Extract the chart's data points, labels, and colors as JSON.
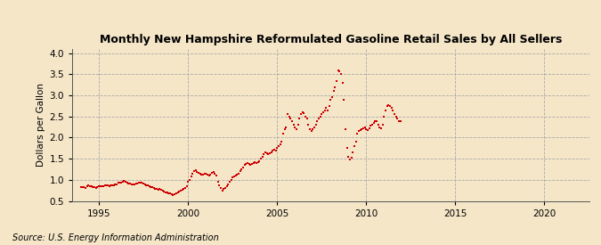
{
  "title": "Monthly New Hampshire Reformulated Gasoline Retail Sales by All Sellers",
  "ylabel": "Dollars per Gallon",
  "source": "Source: U.S. Energy Information Administration",
  "xlim": [
    1993.5,
    2022.5
  ],
  "ylim": [
    0.5,
    4.1
  ],
  "yticks": [
    0.5,
    1.0,
    1.5,
    2.0,
    2.5,
    3.0,
    3.5,
    4.0
  ],
  "xticks": [
    1995,
    2000,
    2005,
    2010,
    2015,
    2020
  ],
  "bg_color": "#F5E6C8",
  "marker_color": "#CC0000",
  "data": [
    [
      1994.0,
      0.82
    ],
    [
      1994.08,
      0.83
    ],
    [
      1994.17,
      0.82
    ],
    [
      1994.25,
      0.81
    ],
    [
      1994.33,
      0.84
    ],
    [
      1994.42,
      0.88
    ],
    [
      1994.5,
      0.85
    ],
    [
      1994.58,
      0.84
    ],
    [
      1994.67,
      0.83
    ],
    [
      1994.75,
      0.82
    ],
    [
      1994.83,
      0.81
    ],
    [
      1994.92,
      0.82
    ],
    [
      1995.0,
      0.84
    ],
    [
      1995.08,
      0.85
    ],
    [
      1995.17,
      0.84
    ],
    [
      1995.25,
      0.85
    ],
    [
      1995.33,
      0.86
    ],
    [
      1995.42,
      0.88
    ],
    [
      1995.5,
      0.87
    ],
    [
      1995.58,
      0.85
    ],
    [
      1995.67,
      0.86
    ],
    [
      1995.75,
      0.87
    ],
    [
      1995.83,
      0.88
    ],
    [
      1995.92,
      0.89
    ],
    [
      1996.0,
      0.9
    ],
    [
      1996.08,
      0.93
    ],
    [
      1996.17,
      0.94
    ],
    [
      1996.25,
      0.94
    ],
    [
      1996.33,
      0.96
    ],
    [
      1996.42,
      0.97
    ],
    [
      1996.5,
      0.95
    ],
    [
      1996.58,
      0.93
    ],
    [
      1996.67,
      0.92
    ],
    [
      1996.75,
      0.91
    ],
    [
      1996.83,
      0.9
    ],
    [
      1996.92,
      0.89
    ],
    [
      1997.0,
      0.9
    ],
    [
      1997.08,
      0.91
    ],
    [
      1997.17,
      0.92
    ],
    [
      1997.25,
      0.93
    ],
    [
      1997.33,
      0.94
    ],
    [
      1997.42,
      0.94
    ],
    [
      1997.5,
      0.92
    ],
    [
      1997.58,
      0.9
    ],
    [
      1997.67,
      0.88
    ],
    [
      1997.75,
      0.87
    ],
    [
      1997.83,
      0.85
    ],
    [
      1997.92,
      0.83
    ],
    [
      1998.0,
      0.82
    ],
    [
      1998.08,
      0.8
    ],
    [
      1998.17,
      0.79
    ],
    [
      1998.25,
      0.78
    ],
    [
      1998.33,
      0.77
    ],
    [
      1998.42,
      0.78
    ],
    [
      1998.5,
      0.76
    ],
    [
      1998.58,
      0.74
    ],
    [
      1998.67,
      0.73
    ],
    [
      1998.75,
      0.71
    ],
    [
      1998.83,
      0.7
    ],
    [
      1998.92,
      0.68
    ],
    [
      1999.0,
      0.67
    ],
    [
      1999.08,
      0.65
    ],
    [
      1999.17,
      0.64
    ],
    [
      1999.25,
      0.66
    ],
    [
      1999.33,
      0.68
    ],
    [
      1999.42,
      0.71
    ],
    [
      1999.5,
      0.73
    ],
    [
      1999.58,
      0.75
    ],
    [
      1999.67,
      0.77
    ],
    [
      1999.75,
      0.78
    ],
    [
      1999.83,
      0.8
    ],
    [
      1999.92,
      0.85
    ],
    [
      2000.0,
      0.95
    ],
    [
      2000.08,
      1.0
    ],
    [
      2000.17,
      1.08
    ],
    [
      2000.25,
      1.15
    ],
    [
      2000.33,
      1.2
    ],
    [
      2000.42,
      1.22
    ],
    [
      2000.5,
      1.18
    ],
    [
      2000.58,
      1.16
    ],
    [
      2000.67,
      1.14
    ],
    [
      2000.75,
      1.13
    ],
    [
      2000.83,
      1.12
    ],
    [
      2000.92,
      1.15
    ],
    [
      2001.0,
      1.15
    ],
    [
      2001.08,
      1.12
    ],
    [
      2001.17,
      1.1
    ],
    [
      2001.25,
      1.13
    ],
    [
      2001.33,
      1.16
    ],
    [
      2001.42,
      1.18
    ],
    [
      2001.5,
      1.15
    ],
    [
      2001.58,
      1.1
    ],
    [
      2001.67,
      0.95
    ],
    [
      2001.75,
      0.88
    ],
    [
      2001.83,
      0.8
    ],
    [
      2001.92,
      0.75
    ],
    [
      2002.0,
      0.78
    ],
    [
      2002.08,
      0.8
    ],
    [
      2002.17,
      0.85
    ],
    [
      2002.25,
      0.9
    ],
    [
      2002.33,
      0.95
    ],
    [
      2002.42,
      1.0
    ],
    [
      2002.5,
      1.05
    ],
    [
      2002.58,
      1.08
    ],
    [
      2002.67,
      1.1
    ],
    [
      2002.75,
      1.12
    ],
    [
      2002.83,
      1.15
    ],
    [
      2002.92,
      1.2
    ],
    [
      2003.0,
      1.25
    ],
    [
      2003.08,
      1.3
    ],
    [
      2003.17,
      1.35
    ],
    [
      2003.25,
      1.38
    ],
    [
      2003.33,
      1.4
    ],
    [
      2003.42,
      1.38
    ],
    [
      2003.5,
      1.35
    ],
    [
      2003.58,
      1.38
    ],
    [
      2003.67,
      1.4
    ],
    [
      2003.75,
      1.42
    ],
    [
      2003.83,
      1.4
    ],
    [
      2003.92,
      1.42
    ],
    [
      2004.0,
      1.45
    ],
    [
      2004.08,
      1.5
    ],
    [
      2004.17,
      1.55
    ],
    [
      2004.25,
      1.6
    ],
    [
      2004.33,
      1.65
    ],
    [
      2004.42,
      1.62
    ],
    [
      2004.5,
      1.6
    ],
    [
      2004.58,
      1.62
    ],
    [
      2004.67,
      1.65
    ],
    [
      2004.75,
      1.7
    ],
    [
      2004.83,
      1.72
    ],
    [
      2004.92,
      1.7
    ],
    [
      2005.0,
      1.75
    ],
    [
      2005.08,
      1.8
    ],
    [
      2005.17,
      1.85
    ],
    [
      2005.25,
      1.9
    ],
    [
      2005.33,
      2.1
    ],
    [
      2005.42,
      2.2
    ],
    [
      2005.5,
      2.25
    ],
    [
      2005.58,
      2.55
    ],
    [
      2005.67,
      2.5
    ],
    [
      2005.75,
      2.45
    ],
    [
      2005.83,
      2.4
    ],
    [
      2005.92,
      2.3
    ],
    [
      2006.0,
      2.25
    ],
    [
      2006.08,
      2.2
    ],
    [
      2006.17,
      2.3
    ],
    [
      2006.25,
      2.45
    ],
    [
      2006.33,
      2.55
    ],
    [
      2006.42,
      2.6
    ],
    [
      2006.5,
      2.58
    ],
    [
      2006.58,
      2.5
    ],
    [
      2006.67,
      2.45
    ],
    [
      2006.75,
      2.3
    ],
    [
      2006.83,
      2.2
    ],
    [
      2006.92,
      2.15
    ],
    [
      2007.0,
      2.2
    ],
    [
      2007.08,
      2.25
    ],
    [
      2007.17,
      2.3
    ],
    [
      2007.25,
      2.4
    ],
    [
      2007.33,
      2.45
    ],
    [
      2007.42,
      2.5
    ],
    [
      2007.5,
      2.55
    ],
    [
      2007.58,
      2.6
    ],
    [
      2007.67,
      2.65
    ],
    [
      2007.75,
      2.7
    ],
    [
      2007.83,
      2.65
    ],
    [
      2007.92,
      2.75
    ],
    [
      2008.0,
      2.9
    ],
    [
      2008.08,
      2.95
    ],
    [
      2008.17,
      3.1
    ],
    [
      2008.25,
      3.2
    ],
    [
      2008.33,
      3.35
    ],
    [
      2008.42,
      3.6
    ],
    [
      2008.5,
      3.58
    ],
    [
      2008.58,
      3.5
    ],
    [
      2008.67,
      3.3
    ],
    [
      2008.75,
      2.9
    ],
    [
      2008.83,
      2.2
    ],
    [
      2008.92,
      1.75
    ],
    [
      2009.0,
      1.55
    ],
    [
      2009.08,
      1.48
    ],
    [
      2009.17,
      1.52
    ],
    [
      2009.25,
      1.65
    ],
    [
      2009.33,
      1.8
    ],
    [
      2009.42,
      1.9
    ],
    [
      2009.5,
      2.1
    ],
    [
      2009.58,
      2.15
    ],
    [
      2009.67,
      2.18
    ],
    [
      2009.75,
      2.2
    ],
    [
      2009.83,
      2.22
    ],
    [
      2009.92,
      2.25
    ],
    [
      2010.0,
      2.2
    ],
    [
      2010.08,
      2.18
    ],
    [
      2010.17,
      2.22
    ],
    [
      2010.25,
      2.28
    ],
    [
      2010.33,
      2.3
    ],
    [
      2010.42,
      2.35
    ],
    [
      2010.5,
      2.38
    ],
    [
      2010.58,
      2.4
    ],
    [
      2010.67,
      2.3
    ],
    [
      2010.75,
      2.25
    ],
    [
      2010.83,
      2.22
    ],
    [
      2010.92,
      2.3
    ],
    [
      2011.0,
      2.5
    ],
    [
      2011.08,
      2.65
    ],
    [
      2011.17,
      2.75
    ],
    [
      2011.25,
      2.78
    ],
    [
      2011.33,
      2.75
    ],
    [
      2011.42,
      2.7
    ],
    [
      2011.5,
      2.65
    ],
    [
      2011.58,
      2.55
    ],
    [
      2011.67,
      2.5
    ],
    [
      2011.75,
      2.45
    ],
    [
      2011.83,
      2.4
    ],
    [
      2011.92,
      2.38
    ]
  ]
}
